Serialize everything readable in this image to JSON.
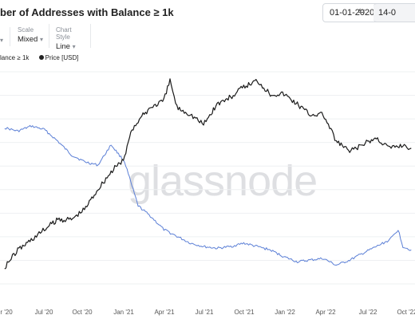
{
  "header": {
    "title": "ber of Addresses with Balance ≥ 1k",
    "date_from": "01-01-2020",
    "date_to": "14-0",
    "date_arrow": "⇆"
  },
  "controls": {
    "scale_label": "Scale",
    "scale_value": "Mixed",
    "style_label": "Chart Style",
    "style_value": "Line"
  },
  "legend": {
    "series_addresses": "lance ≥ 1k",
    "series_price": "Price [USD]"
  },
  "watermark": "glassnode",
  "colors": {
    "addresses": "#5b7fd6",
    "price": "#1a1a1a"
  },
  "chart_data": {
    "type": "line",
    "x_ticks": [
      "r '20",
      "Jul '20",
      "Oct '20",
      "Jan '21",
      "Apr '21",
      "Jul '21",
      "Oct '21",
      "Jan '22",
      "Apr '22",
      "Jul '22",
      "Oct '22"
    ],
    "grid": true,
    "legend_position": "top-left",
    "series": [
      {
        "name": "lance ≥ 1k",
        "x": [
          "2020-04-01",
          "2020-05-01",
          "2020-06-01",
          "2020-07-01",
          "2020-08-01",
          "2020-09-01",
          "2020-10-01",
          "2020-11-01",
          "2020-12-01",
          "2021-01-01",
          "2021-01-15",
          "2021-02-01",
          "2021-03-01",
          "2021-04-01",
          "2021-05-01",
          "2021-06-01",
          "2021-07-01",
          "2021-08-01",
          "2021-09-01",
          "2021-10-01",
          "2021-11-01",
          "2021-12-01",
          "2022-01-01",
          "2022-02-01",
          "2022-03-01",
          "2022-04-01",
          "2022-05-01",
          "2022-06-01",
          "2022-07-01",
          "2022-08-01",
          "2022-09-01",
          "2022-09-20",
          "2022-10-01",
          "2022-10-20"
        ],
        "values": [
          0.92,
          0.9,
          0.93,
          0.91,
          0.84,
          0.76,
          0.72,
          0.7,
          0.82,
          0.72,
          0.6,
          0.46,
          0.4,
          0.32,
          0.28,
          0.24,
          0.22,
          0.21,
          0.22,
          0.24,
          0.22,
          0.2,
          0.16,
          0.13,
          0.14,
          0.15,
          0.11,
          0.14,
          0.18,
          0.22,
          0.26,
          0.32,
          0.22,
          0.2
        ]
      },
      {
        "name": "Price [USD]",
        "x": [
          "2020-04-01",
          "2020-05-01",
          "2020-06-01",
          "2020-07-01",
          "2020-08-01",
          "2020-09-01",
          "2020-10-01",
          "2020-11-01",
          "2020-12-01",
          "2021-01-01",
          "2021-01-15",
          "2021-02-01",
          "2021-03-01",
          "2021-04-01",
          "2021-04-15",
          "2021-05-01",
          "2021-06-01",
          "2021-07-01",
          "2021-08-01",
          "2021-09-01",
          "2021-10-01",
          "2021-11-01",
          "2021-12-01",
          "2022-01-01",
          "2022-02-01",
          "2022-03-01",
          "2022-04-01",
          "2022-05-01",
          "2022-06-01",
          "2022-07-01",
          "2022-08-01",
          "2022-09-01",
          "2022-10-01",
          "2022-10-20"
        ],
        "values": [
          0.1,
          0.2,
          0.26,
          0.32,
          0.38,
          0.38,
          0.44,
          0.56,
          0.66,
          0.74,
          0.9,
          0.96,
          1.04,
          1.08,
          1.2,
          1.04,
          1.0,
          0.94,
          1.06,
          1.1,
          1.16,
          1.2,
          1.12,
          1.12,
          1.06,
          1.0,
          1.0,
          0.84,
          0.78,
          0.82,
          0.86,
          0.8,
          0.82,
          0.8
        ]
      }
    ]
  }
}
